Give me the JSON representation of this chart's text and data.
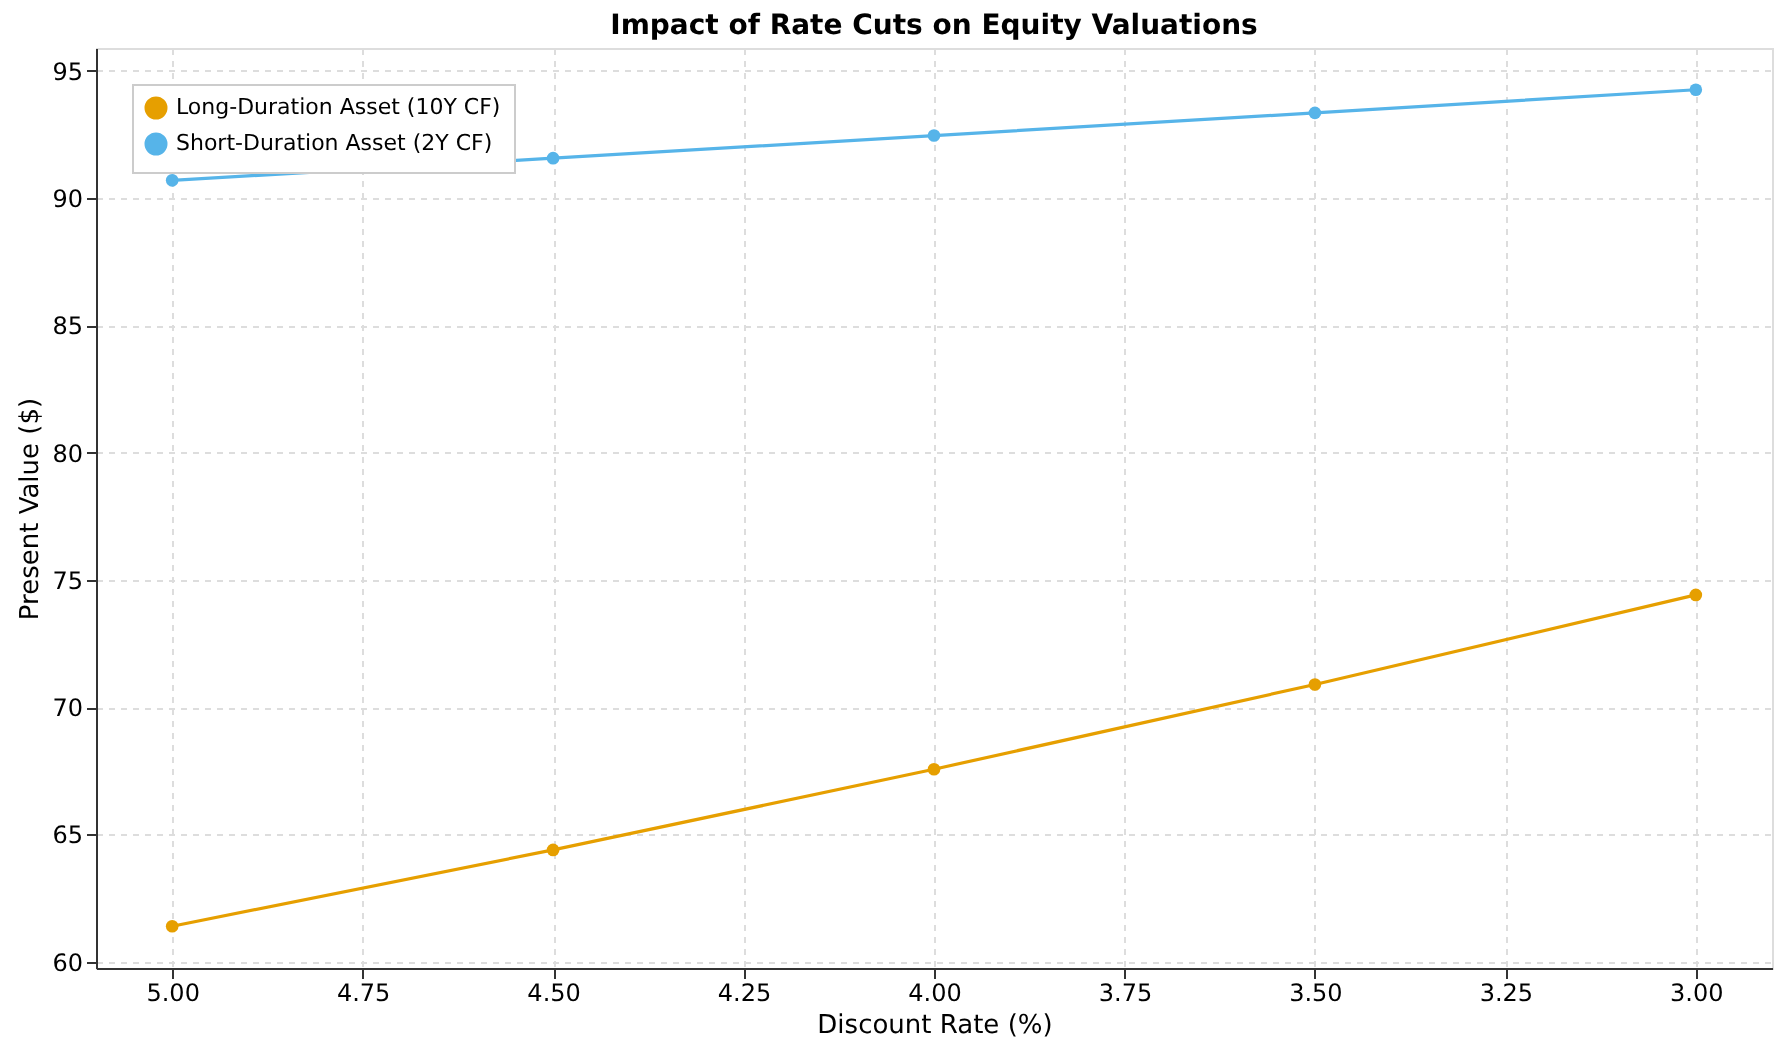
{
  "chart_data": {
    "type": "line",
    "title": "Impact of Rate Cuts on Equity Valuations",
    "xlabel": "Discount Rate (%)",
    "ylabel": "Present Value ($)",
    "x": [
      5.0,
      4.5,
      4.0,
      3.5,
      3.0
    ],
    "series": [
      {
        "name": "Long-Duration Asset (10Y CF)",
        "color": "#e69f00",
        "values": [
          61.39,
          64.39,
          67.56,
          70.89,
          74.41
        ]
      },
      {
        "name": "Short-Duration Asset (2Y CF)",
        "color": "#56b4e9",
        "values": [
          90.7,
          91.57,
          92.46,
          93.35,
          94.26
        ]
      }
    ],
    "xlim": [
      5.1,
      2.9
    ],
    "ylim": [
      59.75,
      95.9
    ],
    "xticks": [
      {
        "value": 5.0,
        "label": "5.00"
      },
      {
        "value": 4.75,
        "label": "4.75"
      },
      {
        "value": 4.5,
        "label": "4.50"
      },
      {
        "value": 4.25,
        "label": "4.25"
      },
      {
        "value": 4.0,
        "label": "4.00"
      },
      {
        "value": 3.75,
        "label": "3.75"
      },
      {
        "value": 3.5,
        "label": "3.50"
      },
      {
        "value": 3.25,
        "label": "3.25"
      },
      {
        "value": 3.0,
        "label": "3.00"
      }
    ],
    "yticks": [
      60,
      65,
      70,
      75,
      80,
      85,
      90,
      95
    ],
    "grid": true,
    "legend": "top left",
    "marker": "circle",
    "line_style": "solid"
  }
}
